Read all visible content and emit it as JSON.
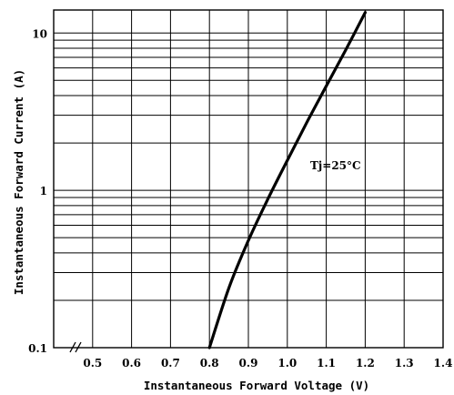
{
  "chart_data": {
    "type": "line",
    "title": "",
    "xlabel": "Instantaneous Forward Voltage (V)",
    "ylabel": "Instantaneous Forward Current (A)",
    "x_scale": "linear",
    "y_scale": "log",
    "xlim": [
      0.4,
      1.4
    ],
    "ylim": [
      0.1,
      14
    ],
    "x_ticks": [
      "0.5",
      "0.6",
      "0.7",
      "0.8",
      "0.9",
      "1.0",
      "1.1",
      "1.2",
      "1.3",
      "1.4"
    ],
    "y_ticks": [
      "0.1",
      "1",
      "10"
    ],
    "x_tick_values": [
      0.5,
      0.6,
      0.7,
      0.8,
      0.9,
      1.0,
      1.1,
      1.2,
      1.3,
      1.4
    ],
    "y_tick_values": [
      0.1,
      1,
      10
    ],
    "grid": true,
    "axis_break": "x",
    "annotation": "Tj=25°C",
    "series": [
      {
        "x": [
          0.8,
          0.85,
          0.9,
          0.95,
          1.0,
          1.05,
          1.1,
          1.15,
          1.2
        ],
        "y": [
          0.1,
          0.24,
          0.48,
          0.88,
          1.55,
          2.7,
          4.6,
          7.8,
          13.5
        ]
      }
    ]
  }
}
